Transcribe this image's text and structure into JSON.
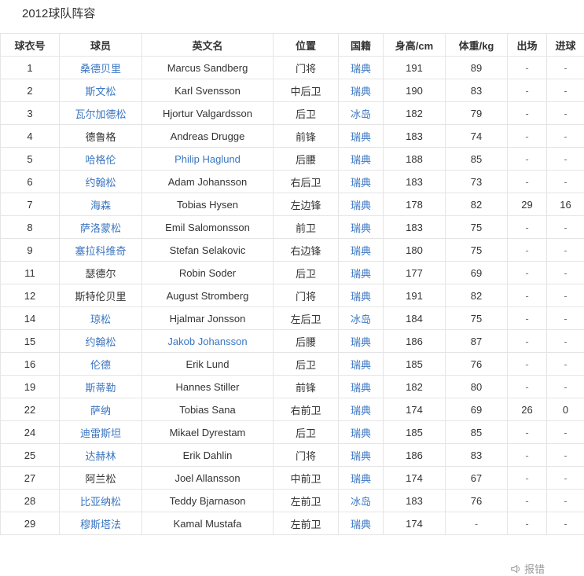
{
  "page": {
    "title": "2012球队阵容"
  },
  "colors": {
    "link": "#3b76c2",
    "text": "#333333",
    "border": "#e5e5e5",
    "muted": "#9b9b9b"
  },
  "report": {
    "label": "报错",
    "icon": "megaphone-icon"
  },
  "table": {
    "columns": [
      "球衣号",
      "球员",
      "英文名",
      "位置",
      "国籍",
      "身高/cm",
      "体重/kg",
      "出场",
      "进球"
    ],
    "rows": [
      {
        "no": "1",
        "player": "桑德贝里",
        "player_link": true,
        "en": "Marcus Sandberg",
        "en_link": false,
        "pos": "门将",
        "nat": "瑞典",
        "height": "191",
        "weight": "89",
        "apps": "-",
        "goals": "-"
      },
      {
        "no": "2",
        "player": "斯文松",
        "player_link": true,
        "en": "Karl Svensson",
        "en_link": false,
        "pos": "中后卫",
        "nat": "瑞典",
        "height": "190",
        "weight": "83",
        "apps": "-",
        "goals": "-"
      },
      {
        "no": "3",
        "player": "瓦尔加德松",
        "player_link": true,
        "en": "Hjortur Valgardsson",
        "en_link": false,
        "pos": "后卫",
        "nat": "冰岛",
        "height": "182",
        "weight": "79",
        "apps": "-",
        "goals": "-"
      },
      {
        "no": "4",
        "player": "德鲁格",
        "player_link": false,
        "en": "Andreas Drugge",
        "en_link": false,
        "pos": "前锋",
        "nat": "瑞典",
        "height": "183",
        "weight": "74",
        "apps": "-",
        "goals": "-"
      },
      {
        "no": "5",
        "player": "哈格伦",
        "player_link": true,
        "en": "Philip Haglund",
        "en_link": true,
        "pos": "后腰",
        "nat": "瑞典",
        "height": "188",
        "weight": "85",
        "apps": "-",
        "goals": "-"
      },
      {
        "no": "6",
        "player": "约翰松",
        "player_link": true,
        "en": "Adam Johansson",
        "en_link": false,
        "pos": "右后卫",
        "nat": "瑞典",
        "height": "183",
        "weight": "73",
        "apps": "-",
        "goals": "-"
      },
      {
        "no": "7",
        "player": "海森",
        "player_link": true,
        "en": "Tobias Hysen",
        "en_link": false,
        "pos": "左边锋",
        "nat": "瑞典",
        "height": "178",
        "weight": "82",
        "apps": "29",
        "goals": "16"
      },
      {
        "no": "8",
        "player": "萨洛蒙松",
        "player_link": true,
        "en": "Emil Salomonsson",
        "en_link": false,
        "pos": "前卫",
        "nat": "瑞典",
        "height": "183",
        "weight": "75",
        "apps": "-",
        "goals": "-"
      },
      {
        "no": "9",
        "player": "塞拉科维奇",
        "player_link": true,
        "en": "Stefan Selakovic",
        "en_link": false,
        "pos": "右边锋",
        "nat": "瑞典",
        "height": "180",
        "weight": "75",
        "apps": "-",
        "goals": "-"
      },
      {
        "no": "11",
        "player": "瑟德尔",
        "player_link": false,
        "en": "Robin Soder",
        "en_link": false,
        "pos": "后卫",
        "nat": "瑞典",
        "height": "177",
        "weight": "69",
        "apps": "-",
        "goals": "-"
      },
      {
        "no": "12",
        "player": "斯特伦贝里",
        "player_link": false,
        "en": "August Stromberg",
        "en_link": false,
        "pos": "门将",
        "nat": "瑞典",
        "height": "191",
        "weight": "82",
        "apps": "-",
        "goals": "-"
      },
      {
        "no": "14",
        "player": "琼松",
        "player_link": true,
        "en": "Hjalmar Jonsson",
        "en_link": false,
        "pos": "左后卫",
        "nat": "冰岛",
        "height": "184",
        "weight": "75",
        "apps": "-",
        "goals": "-"
      },
      {
        "no": "15",
        "player": "约翰松",
        "player_link": true,
        "en": "Jakob Johansson",
        "en_link": true,
        "pos": "后腰",
        "nat": "瑞典",
        "height": "186",
        "weight": "87",
        "apps": "-",
        "goals": "-"
      },
      {
        "no": "16",
        "player": "伦德",
        "player_link": true,
        "en": "Erik Lund",
        "en_link": false,
        "pos": "后卫",
        "nat": "瑞典",
        "height": "185",
        "weight": "76",
        "apps": "-",
        "goals": "-"
      },
      {
        "no": "19",
        "player": "斯蒂勒",
        "player_link": true,
        "en": "Hannes Stiller",
        "en_link": false,
        "pos": "前锋",
        "nat": "瑞典",
        "height": "182",
        "weight": "80",
        "apps": "-",
        "goals": "-"
      },
      {
        "no": "22",
        "player": "萨纳",
        "player_link": true,
        "en": "Tobias Sana",
        "en_link": false,
        "pos": "右前卫",
        "nat": "瑞典",
        "height": "174",
        "weight": "69",
        "apps": "26",
        "goals": "0"
      },
      {
        "no": "24",
        "player": "迪雷斯坦",
        "player_link": true,
        "en": "Mikael Dyrestam",
        "en_link": false,
        "pos": "后卫",
        "nat": "瑞典",
        "height": "185",
        "weight": "85",
        "apps": "-",
        "goals": "-"
      },
      {
        "no": "25",
        "player": "达赫林",
        "player_link": true,
        "en": "Erik Dahlin",
        "en_link": false,
        "pos": "门将",
        "nat": "瑞典",
        "height": "186",
        "weight": "83",
        "apps": "-",
        "goals": "-"
      },
      {
        "no": "27",
        "player": "阿兰松",
        "player_link": false,
        "en": "Joel Allansson",
        "en_link": false,
        "pos": "中前卫",
        "nat": "瑞典",
        "height": "174",
        "weight": "67",
        "apps": "-",
        "goals": "-"
      },
      {
        "no": "28",
        "player": "比亚纳松",
        "player_link": true,
        "en": "Teddy Bjarnason",
        "en_link": false,
        "pos": "左前卫",
        "nat": "冰岛",
        "height": "183",
        "weight": "76",
        "apps": "-",
        "goals": "-"
      },
      {
        "no": "29",
        "player": "穆斯塔法",
        "player_link": true,
        "en": "Kamal Mustafa",
        "en_link": false,
        "pos": "左前卫",
        "nat": "瑞典",
        "height": "174",
        "weight": "-",
        "apps": "-",
        "goals": "-"
      }
    ]
  }
}
